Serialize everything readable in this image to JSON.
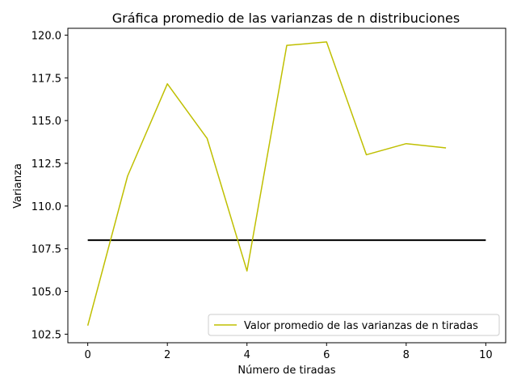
{
  "chart_data": {
    "type": "line",
    "title": "Gráfica promedio de las varianzas de n distribuciones",
    "xlabel": "Número de tiradas",
    "ylabel": "Varianza",
    "xlim": [
      -0.5,
      10.5
    ],
    "ylim": [
      102.0,
      120.4
    ],
    "xticks": [
      0,
      2,
      4,
      6,
      8,
      10
    ],
    "yticks": [
      102.5,
      105.0,
      107.5,
      110.0,
      112.5,
      115.0,
      117.5,
      120.0
    ],
    "xtick_labels": [
      "0",
      "2",
      "4",
      "6",
      "8",
      "10"
    ],
    "ytick_labels": [
      "102.5",
      "105.0",
      "107.5",
      "110.0",
      "112.5",
      "115.0",
      "117.5",
      "120.0"
    ],
    "grid": false,
    "legend_position": "lower-right",
    "series": [
      {
        "name": "Valor promedio de las varianzas de n tiradas",
        "color": "#bfbf00",
        "x": [
          0,
          1,
          2,
          3,
          4,
          5,
          6,
          7,
          8,
          9
        ],
        "values": [
          103.0,
          111.75,
          117.15,
          113.95,
          106.2,
          119.4,
          119.6,
          113.0,
          113.65,
          113.4
        ]
      }
    ],
    "reference_line": {
      "color": "#000000",
      "x": [
        0,
        10
      ],
      "values": [
        108.0,
        108.0
      ]
    }
  }
}
